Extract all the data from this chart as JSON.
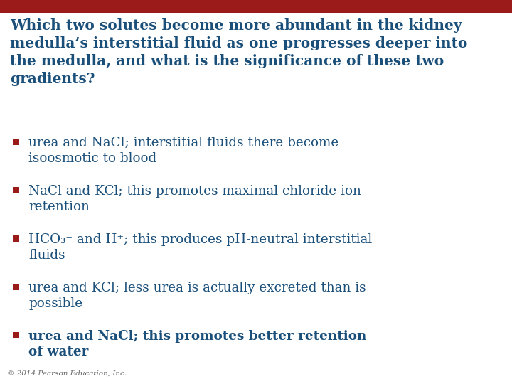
{
  "background_color": "#FFFFFF",
  "top_bar_color": "#9B1B1B",
  "question_color": "#1A4F7A",
  "bullet_color": "#9B1B1B",
  "answer_text_color": "#1A4F7A",
  "footer_color": "#666666",
  "question": "Which two solutes become more abundant in the kidney\nmedulla’s interstitial fluid as one progresses deeper into\nthe medulla, and what is the significance of these two\ngradients?",
  "bullets": [
    {
      "line1": "urea and NaCl; interstitial fluids there become",
      "line2": "isoosmotic to blood",
      "bold": false
    },
    {
      "line1": "NaCl and KCl; this promotes maximal chloride ion",
      "line2": "retention",
      "bold": false
    },
    {
      "line1": "HCO₃⁻ and H⁺; this produces pH-neutral interstitial",
      "line2": "fluids",
      "bold": false
    },
    {
      "line1": "urea and KCl; less urea is actually excreted than is",
      "line2": "possible",
      "bold": false
    },
    {
      "line1": "urea and NaCl; this promotes better retention",
      "line2": "of water",
      "bold": true
    }
  ],
  "footer": "© 2014 Pearson Education, Inc.",
  "question_fontsize": 14.5,
  "bullet_fontsize": 13.2,
  "footer_fontsize": 7.5
}
